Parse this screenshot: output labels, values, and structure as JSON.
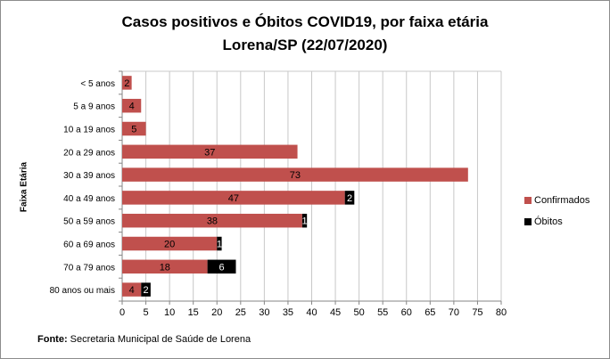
{
  "chart_data": {
    "type": "bar",
    "orientation": "horizontal",
    "stacked": true,
    "title_line1": "Casos positivos  e Óbitos COVID19, por faixa etária",
    "title_line2": "Lorena/SP (22/07/2020)",
    "ylabel": "Faixa Etária",
    "xlabel": "",
    "categories": [
      "< 5 anos",
      "5 a 9 anos",
      "10 a 19 anos",
      "20 a 29 anos",
      "30 a 39 anos",
      "40 a 49 anos",
      "50 a 59 anos",
      "60 a 69 anos",
      "70 a 79 anos",
      "80 anos ou mais"
    ],
    "series": [
      {
        "name": "Confirmados",
        "color": "#c0504d",
        "values": [
          2,
          4,
          5,
          37,
          73,
          47,
          38,
          20,
          18,
          4
        ]
      },
      {
        "name": "Óbitos",
        "color": "#000000",
        "values": [
          0,
          0,
          0,
          0,
          0,
          2,
          1,
          1,
          6,
          2
        ]
      }
    ],
    "xlim": [
      0,
      80
    ],
    "xticks": [
      0,
      5,
      10,
      15,
      20,
      25,
      30,
      35,
      40,
      45,
      50,
      55,
      60,
      65,
      70,
      75,
      80
    ],
    "grid": "vertical",
    "legend_position": "right"
  },
  "footer": {
    "label": "Fonte:",
    "text": " Secretaria Municipal de Saúde de Lorena"
  }
}
